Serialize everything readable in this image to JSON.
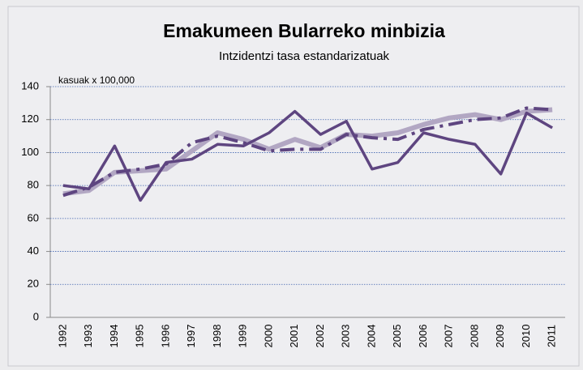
{
  "chart_data": {
    "type": "line",
    "title": "Emakumeen Bularreko minbizia",
    "subtitle": "Intzidentzi tasa estandarizatuak",
    "y_label": "kasuak x 100,000",
    "categories": [
      "1992",
      "1993",
      "1994",
      "1995",
      "1996",
      "1997",
      "1998",
      "1999",
      "2000",
      "2001",
      "2002",
      "2003",
      "2004",
      "2005",
      "2006",
      "2007",
      "2008",
      "2009",
      "2010",
      "2011"
    ],
    "series": [
      {
        "color": "#b2a7c3",
        "style": "solid",
        "width": 6,
        "values": [
          75,
          77,
          88,
          89,
          90,
          101,
          112,
          108,
          102,
          108,
          103,
          111,
          110,
          112,
          117,
          121,
          123,
          120,
          125,
          126
        ]
      },
      {
        "color": "#5e4580",
        "style": "dashdot",
        "width": 4,
        "values": [
          74,
          79,
          88,
          90,
          93,
          106,
          110,
          106,
          101,
          102,
          102,
          111,
          109,
          108,
          114,
          117,
          120,
          121,
          127,
          126
        ]
      },
      {
        "color": "#5e4580",
        "style": "solid",
        "width": 3.5,
        "values": [
          80,
          78,
          104,
          71,
          94,
          96,
          105,
          104,
          112,
          125,
          111,
          119,
          90,
          94,
          112,
          108,
          105,
          87,
          124,
          115
        ]
      }
    ],
    "ylim": [
      0,
      140
    ],
    "yticks": [
      0,
      20,
      40,
      60,
      80,
      100,
      120,
      140
    ],
    "grid": true
  }
}
